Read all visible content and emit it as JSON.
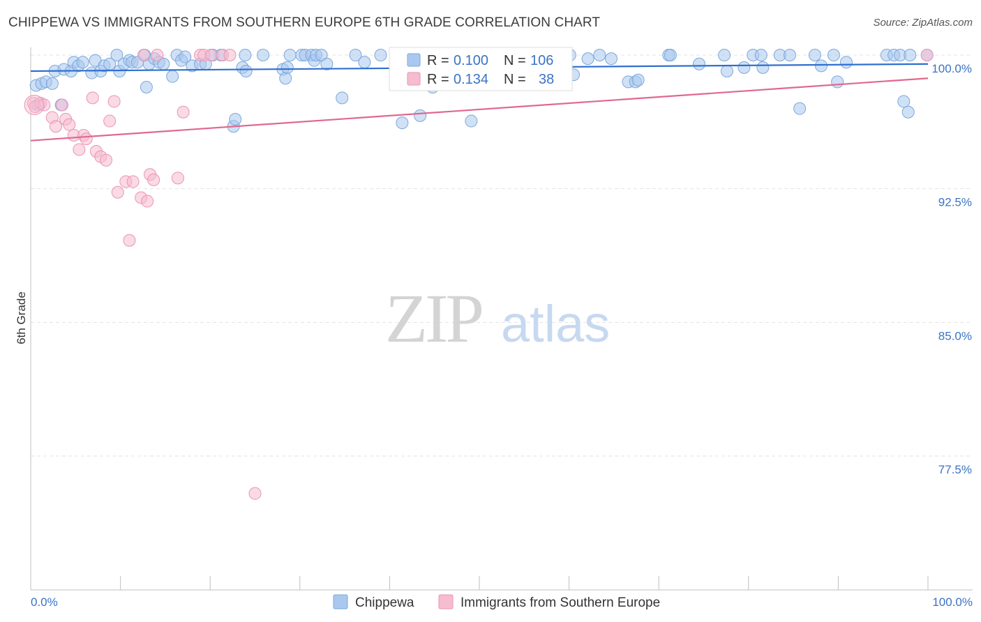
{
  "header": {
    "title": "CHIPPEWA VS IMMIGRANTS FROM SOUTHERN EUROPE 6TH GRADE CORRELATION CHART",
    "source": "Source: ZipAtlas.com"
  },
  "watermark": {
    "zip": "ZIP",
    "atlas": "atlas"
  },
  "legend_top": [
    {
      "r_label": "R =",
      "r_value": "0.100",
      "n_label": "N =",
      "n_value": "106"
    },
    {
      "r_label": "R =",
      "r_value": "0.134",
      "n_label": "N =",
      "n_value": "38"
    }
  ],
  "colors": {
    "blue_fill": "#a9c8ef",
    "blue_stroke": "#7ba7dc",
    "blue_line": "#2f6fcf",
    "pink_fill": "#f6bcd0",
    "pink_stroke": "#ea93b3",
    "pink_line": "#e06890",
    "axis_text": "#3a73c4",
    "grid": "#e3e3e3"
  },
  "chart_data": {
    "type": "scatter",
    "title": "CHIPPEWA VS IMMIGRANTS FROM SOUTHERN EUROPE 6TH GRADE CORRELATION CHART",
    "ylabel": "6th Grade",
    "xlabel": "",
    "x_tick_labels": [
      "0.0%",
      "100.0%"
    ],
    "y_tick_labels": [
      "100.0%",
      "92.5%",
      "85.0%",
      "77.5%"
    ],
    "y_ticks": [
      100.0,
      92.5,
      85.0,
      77.5
    ],
    "xlim": [
      0,
      100
    ],
    "ylim": [
      70.0,
      100.6
    ],
    "grid": true,
    "legend_position": "top-center",
    "series": [
      {
        "name": "Chippewa",
        "color": "#a9c8ef",
        "stroke": "#7ba7dc",
        "regression": {
          "r": 0.1,
          "n": 106,
          "y_at_x0": 99.1,
          "y_at_x100": 99.5
        },
        "points": [
          [
            0.6,
            98.3
          ],
          [
            0.8,
            97.2
          ],
          [
            1.2,
            98.4
          ],
          [
            1.7,
            98.5
          ],
          [
            2.4,
            98.4
          ],
          [
            2.7,
            99.1
          ],
          [
            3.4,
            97.2
          ],
          [
            3.7,
            99.2
          ],
          [
            4.5,
            99.1
          ],
          [
            4.8,
            99.6
          ],
          [
            5.3,
            99.4
          ],
          [
            5.8,
            99.6
          ],
          [
            6.8,
            99.0
          ],
          [
            7.2,
            99.7
          ],
          [
            7.8,
            99.1
          ],
          [
            8.2,
            99.4
          ],
          [
            8.8,
            99.5
          ],
          [
            9.6,
            100.0
          ],
          [
            9.9,
            99.1
          ],
          [
            10.4,
            99.5
          ],
          [
            11.0,
            99.7
          ],
          [
            11.3,
            99.6
          ],
          [
            11.9,
            99.6
          ],
          [
            12.7,
            100.0
          ],
          [
            12.9,
            98.2
          ],
          [
            13.2,
            99.5
          ],
          [
            13.8,
            99.8
          ],
          [
            14.3,
            99.6
          ],
          [
            14.8,
            99.5
          ],
          [
            15.8,
            98.8
          ],
          [
            16.3,
            100.0
          ],
          [
            16.8,
            99.7
          ],
          [
            17.2,
            99.9
          ],
          [
            18.0,
            99.4
          ],
          [
            18.9,
            99.5
          ],
          [
            19.5,
            99.5
          ],
          [
            20.3,
            100.0
          ],
          [
            21.2,
            100.0
          ],
          [
            22.6,
            96.0
          ],
          [
            22.8,
            96.4
          ],
          [
            23.6,
            99.3
          ],
          [
            23.9,
            100.0
          ],
          [
            24.0,
            99.1
          ],
          [
            25.9,
            100.0
          ],
          [
            28.1,
            99.2
          ],
          [
            28.4,
            98.7
          ],
          [
            28.6,
            99.3
          ],
          [
            28.9,
            100.0
          ],
          [
            30.2,
            100.0
          ],
          [
            30.6,
            100.0
          ],
          [
            31.3,
            100.0
          ],
          [
            31.6,
            99.7
          ],
          [
            31.8,
            100.0
          ],
          [
            32.4,
            100.0
          ],
          [
            33.0,
            99.5
          ],
          [
            34.7,
            97.6
          ],
          [
            36.2,
            100.0
          ],
          [
            37.2,
            99.6
          ],
          [
            39.0,
            100.0
          ],
          [
            41.4,
            96.2
          ],
          [
            41.8,
            100.0
          ],
          [
            43.4,
            96.6
          ],
          [
            44.8,
            98.2
          ],
          [
            47.4,
            100.0
          ],
          [
            49.1,
            96.3
          ],
          [
            50.2,
            99.9
          ],
          [
            51.1,
            100.0
          ],
          [
            52.8,
            100.0
          ],
          [
            53.2,
            99.2
          ],
          [
            54.3,
            98.6
          ],
          [
            55.5,
            99.6
          ],
          [
            56.0,
            99.8
          ],
          [
            56.5,
            99.0
          ],
          [
            58.4,
            99.0
          ],
          [
            60.1,
            100.0
          ],
          [
            60.5,
            98.9
          ],
          [
            62.1,
            99.8
          ],
          [
            63.4,
            100.0
          ],
          [
            64.7,
            99.8
          ],
          [
            66.6,
            98.5
          ],
          [
            67.4,
            98.5
          ],
          [
            67.7,
            98.6
          ],
          [
            71.1,
            100.0
          ],
          [
            71.3,
            100.0
          ],
          [
            74.5,
            99.5
          ],
          [
            77.3,
            100.0
          ],
          [
            77.6,
            99.1
          ],
          [
            79.5,
            99.3
          ],
          [
            80.5,
            100.0
          ],
          [
            81.4,
            100.0
          ],
          [
            81.6,
            99.3
          ],
          [
            83.5,
            100.0
          ],
          [
            84.6,
            100.0
          ],
          [
            85.7,
            97.0
          ],
          [
            87.4,
            100.0
          ],
          [
            88.1,
            99.4
          ],
          [
            89.5,
            100.0
          ],
          [
            89.9,
            98.5
          ],
          [
            90.9,
            99.6
          ],
          [
            95.4,
            100.0
          ],
          [
            96.2,
            100.0
          ],
          [
            96.9,
            100.0
          ],
          [
            97.3,
            97.4
          ],
          [
            97.8,
            96.8
          ],
          [
            98.0,
            100.0
          ],
          [
            99.9,
            100.0
          ]
        ]
      },
      {
        "name": "Immigrants from Southern Europe",
        "color": "#f6bcd0",
        "stroke": "#ea93b3",
        "regression": {
          "r": 0.134,
          "n": 38,
          "y_at_x0": 95.2,
          "y_at_x100": 98.7
        },
        "points": [
          [
            0.3,
            97.3
          ],
          [
            0.5,
            97.1
          ],
          [
            1.1,
            97.3
          ],
          [
            1.5,
            97.2
          ],
          [
            2.4,
            96.5
          ],
          [
            2.8,
            96.0
          ],
          [
            3.5,
            97.2
          ],
          [
            3.9,
            96.4
          ],
          [
            4.3,
            96.1
          ],
          [
            4.8,
            95.5
          ],
          [
            5.4,
            94.7
          ],
          [
            5.9,
            95.5
          ],
          [
            6.2,
            95.3
          ],
          [
            6.9,
            97.6
          ],
          [
            7.3,
            94.6
          ],
          [
            7.8,
            94.3
          ],
          [
            8.4,
            94.1
          ],
          [
            8.8,
            96.3
          ],
          [
            9.3,
            97.4
          ],
          [
            9.7,
            92.3
          ],
          [
            10.6,
            92.9
          ],
          [
            11.0,
            89.6
          ],
          [
            11.4,
            92.9
          ],
          [
            12.3,
            92.0
          ],
          [
            12.6,
            100.0
          ],
          [
            13.0,
            91.8
          ],
          [
            13.3,
            93.3
          ],
          [
            13.7,
            93.0
          ],
          [
            14.1,
            100.0
          ],
          [
            16.4,
            93.1
          ],
          [
            17.0,
            96.8
          ],
          [
            18.9,
            100.0
          ],
          [
            19.3,
            100.0
          ],
          [
            20.1,
            100.0
          ],
          [
            21.4,
            100.0
          ],
          [
            22.2,
            100.0
          ],
          [
            25.0,
            75.4
          ],
          [
            99.9,
            100.0
          ]
        ]
      }
    ]
  },
  "legend_bottom": [
    {
      "label": "Chippewa"
    },
    {
      "label": "Immigrants from Southern Europe"
    }
  ]
}
